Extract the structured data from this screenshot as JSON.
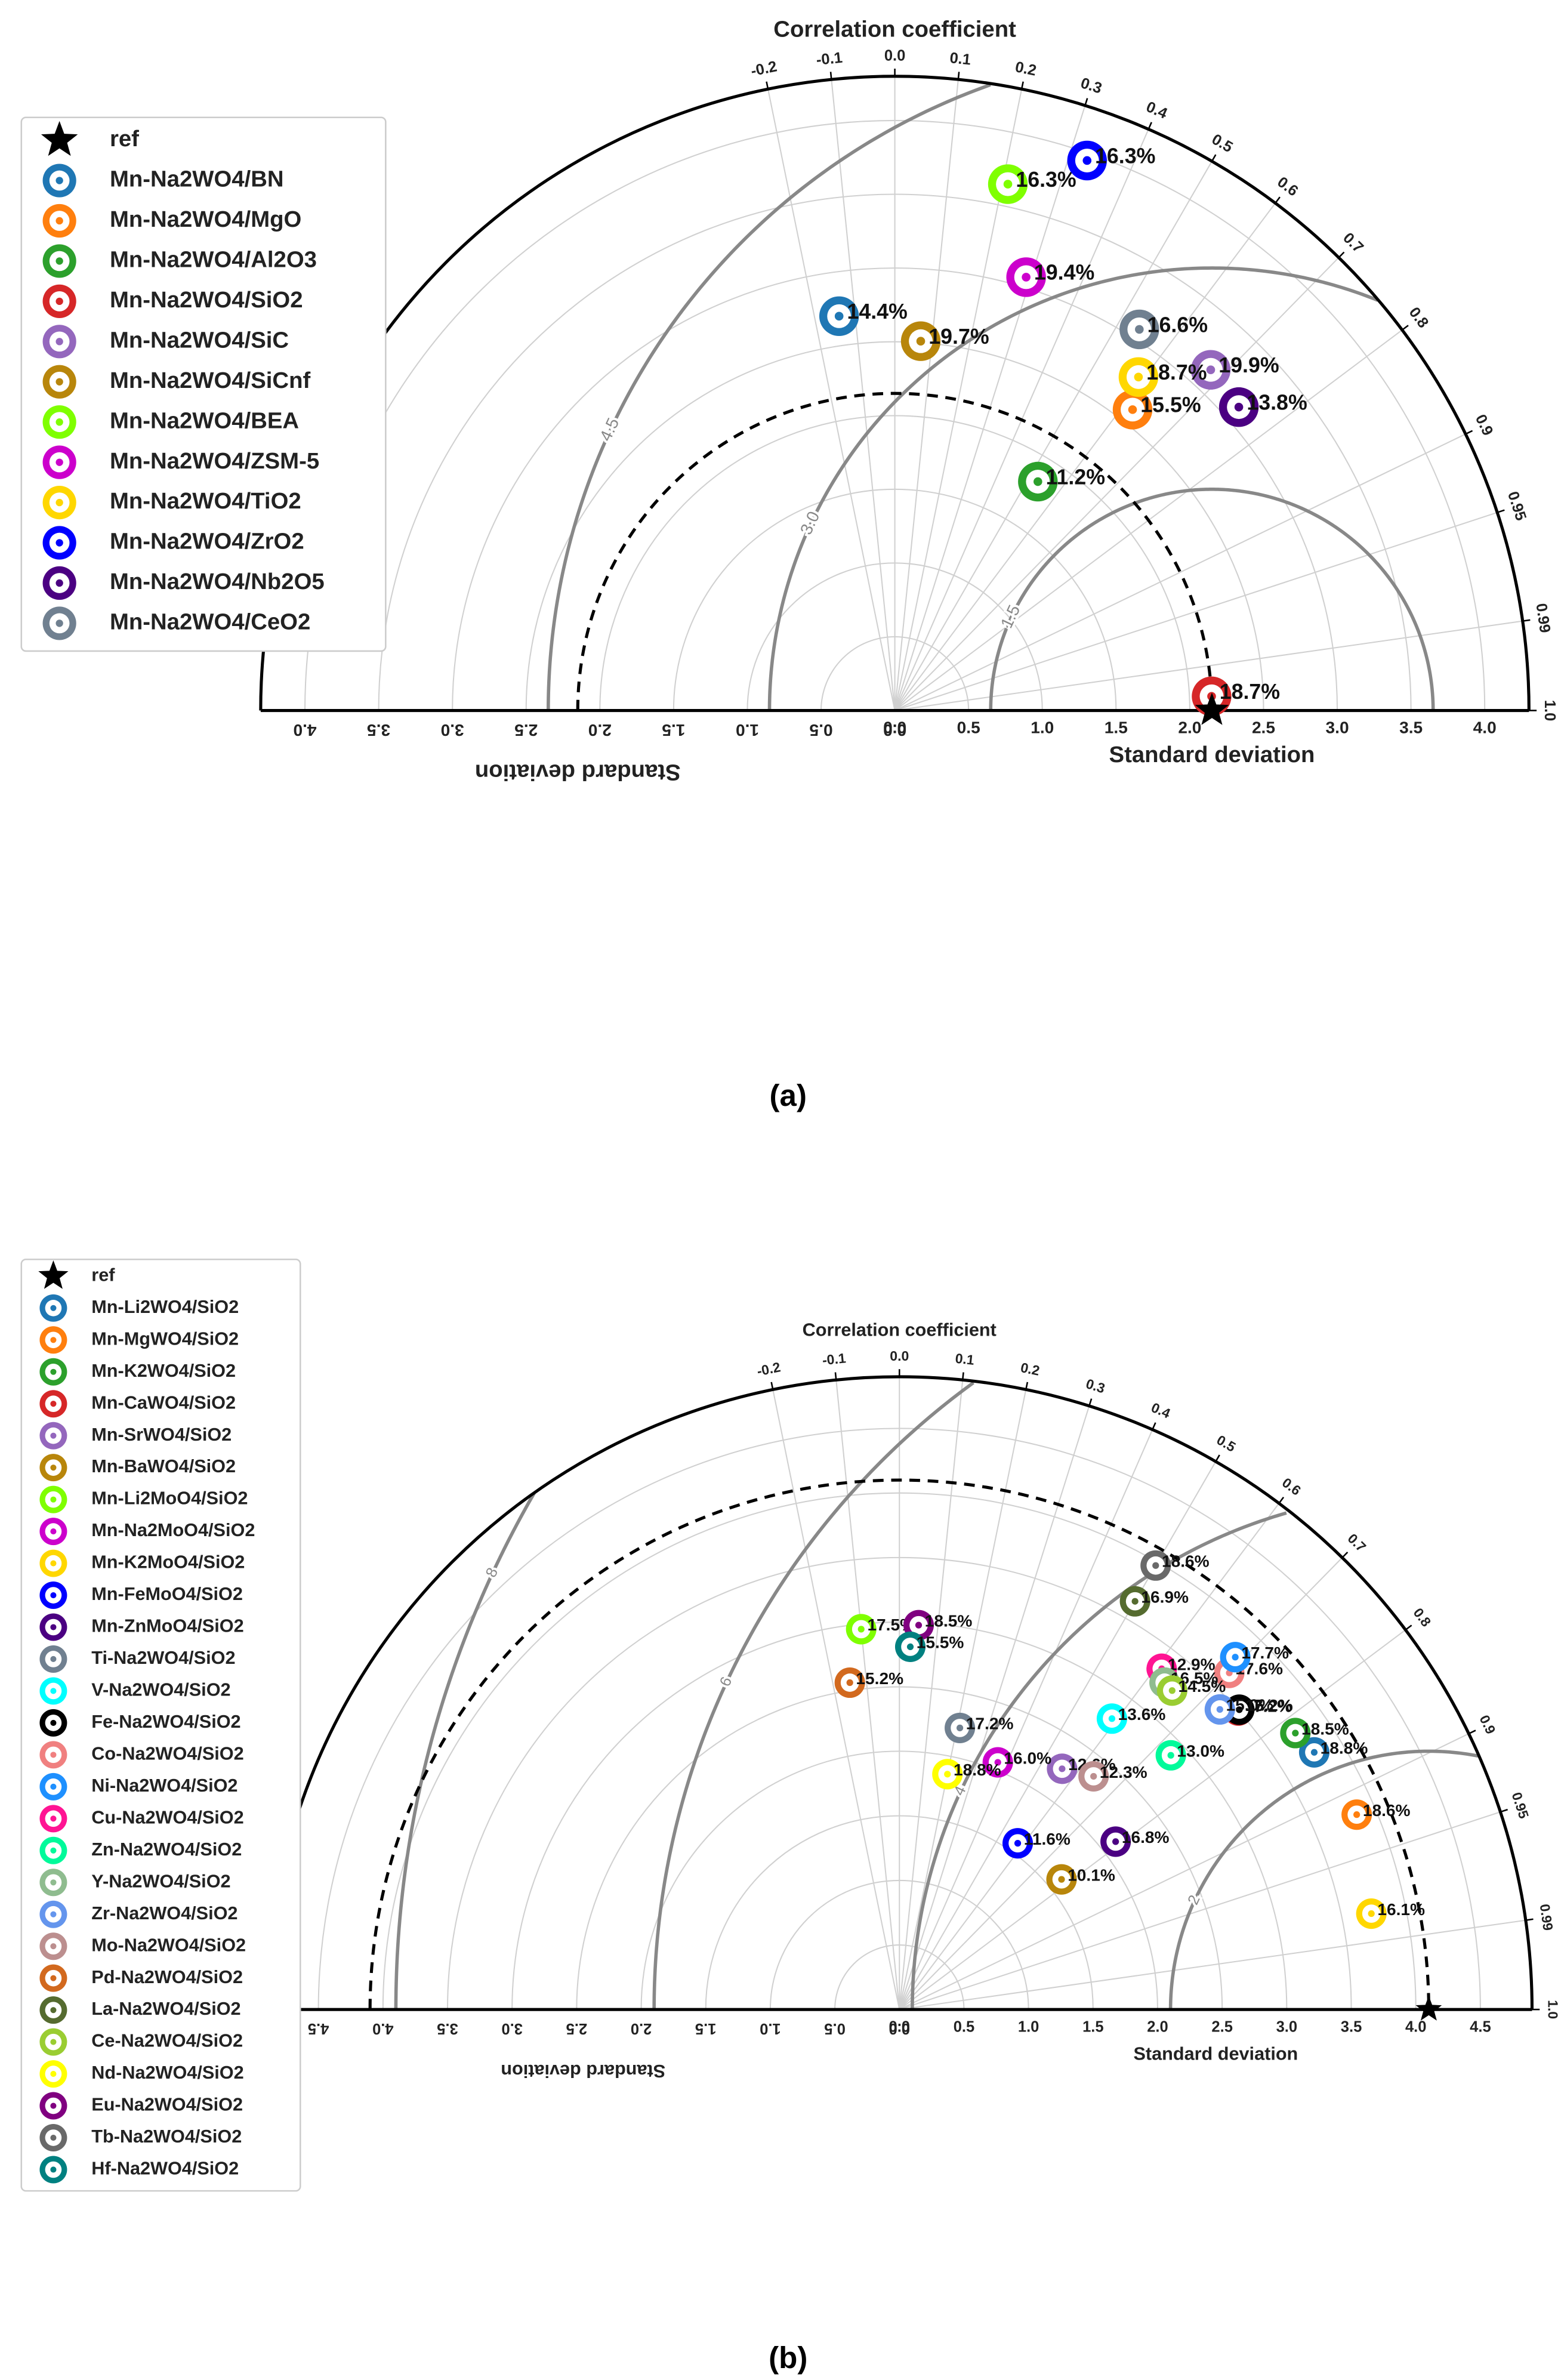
{
  "chart_data": [
    {
      "type": "taylor",
      "title": "Correlation coefficient",
      "xlabel": "Standard deviation",
      "caption": "(a)",
      "rlim": [
        0,
        4.3
      ],
      "stdticks": [
        {
          "value": 0,
          "label": "0.0"
        },
        0.5,
        {
          "value": 1,
          "label": "1.0"
        },
        1.5,
        {
          "value": 2,
          "label": "2.0"
        },
        2.5,
        {
          "value": 3,
          "label": "3.0"
        },
        3.5,
        {
          "value": 4,
          "label": "4.0"
        }
      ],
      "corrticks": [
        -0.2,
        -0.1,
        {
          "value": 0,
          "label": "0.0"
        },
        0.1,
        0.2,
        0.3,
        0.4,
        0.5,
        0.6,
        0.7,
        0.8,
        0.9,
        0.95,
        0.99,
        {
          "value": 1,
          "label": "1.0"
        }
      ],
      "rms_ticks": [
        1.5,
        {
          "value": 3,
          "label": "3.0"
        },
        4.5
      ],
      "grid": true,
      "ref": {
        "name": "ref",
        "std": 2.15,
        "corr": 1,
        "color": "#000000"
      },
      "series": [
        {
          "name": "Mn-Na2WO4/BN",
          "color": "#1f77b4",
          "std": 2.7,
          "corr": -0.14,
          "label": "14.4%"
        },
        {
          "name": "Mn-Na2WO4/MgO",
          "color": "#ff7f0e",
          "std": 2.6,
          "corr": 0.62,
          "label": "15.5%"
        },
        {
          "name": "Mn-Na2WO4/Al2O3",
          "color": "#2ca02c",
          "std": 1.83,
          "corr": 0.53,
          "label": "11.2%"
        },
        {
          "name": "Mn-Na2WO4/SiO2",
          "color": "#d62728",
          "std": 2.15,
          "corr": 0.999,
          "label": "18.7%"
        },
        {
          "name": "Mn-Na2WO4/SiC",
          "color": "#9467bd",
          "std": 3.15,
          "corr": 0.68,
          "label": "19.9%"
        },
        {
          "name": "Mn-Na2WO4/SiCnf",
          "color": "#b8860b",
          "std": 2.51,
          "corr": 0.07,
          "label": "19.7%"
        },
        {
          "name": "Mn-Na2WO4/BEA",
          "color": "#7fff00",
          "std": 3.65,
          "corr": 0.21,
          "label": "16.3%"
        },
        {
          "name": "Mn-Na2WO4/ZSM-5",
          "color": "#cc00cc",
          "std": 3.07,
          "corr": 0.29,
          "label": "19.4%"
        },
        {
          "name": "Mn-Na2WO4/TiO2",
          "color": "#ffd700",
          "std": 2.8,
          "corr": 0.59,
          "label": "18.7%"
        },
        {
          "name": "Mn-Na2WO4/ZrO2",
          "color": "#0000ff",
          "std": 3.95,
          "corr": 0.33,
          "label": "16.3%"
        },
        {
          "name": "Mn-Na2WO4/Nb2O5",
          "color": "#4b0082",
          "std": 3.11,
          "corr": 0.75,
          "label": "13.8%"
        },
        {
          "name": "Mn-Na2WO4/CeO2",
          "color": "#708090",
          "std": 3.07,
          "corr": 0.54,
          "label": "16.6%"
        }
      ]
    },
    {
      "type": "taylor",
      "title": "Correlation coefficient",
      "xlabel": "Standard deviation",
      "caption": "(b)",
      "rlim": [
        0,
        4.9
      ],
      "stdticks": [
        {
          "value": 0,
          "label": "0.0"
        },
        0.5,
        {
          "value": 1,
          "label": "1.0"
        },
        1.5,
        {
          "value": 2,
          "label": "2.0"
        },
        2.5,
        {
          "value": 3,
          "label": "3.0"
        },
        3.5,
        {
          "value": 4,
          "label": "4.0"
        },
        4.5
      ],
      "corrticks": [
        -0.2,
        -0.1,
        {
          "value": 0,
          "label": "0.0"
        },
        0.1,
        0.2,
        0.3,
        0.4,
        0.5,
        0.6,
        0.7,
        0.8,
        0.9,
        0.95,
        0.99,
        {
          "value": 1,
          "label": "1.0"
        }
      ],
      "rms_ticks": [
        2,
        4,
        6,
        8
      ],
      "grid": true,
      "ref": {
        "name": "ref",
        "std": 4.1,
        "corr": 1,
        "color": "#000000"
      },
      "series": [
        {
          "name": "Mn-Li2WO4/SiO2",
          "color": "#1f77b4",
          "std": 3.78,
          "corr": 0.85,
          "label": "18.8%"
        },
        {
          "name": "Mn-MgWO4/SiO2",
          "color": "#ff7f0e",
          "std": 3.85,
          "corr": 0.92,
          "label": "18.6%"
        },
        {
          "name": "Mn-K2WO4/SiO2",
          "color": "#2ca02c",
          "std": 3.74,
          "corr": 0.82,
          "label": "18.5%"
        },
        {
          "name": "Mn-CaWO4/SiO2",
          "color": "#d62728",
          "std": 3.5,
          "corr": 0.75,
          "label": "17.2%"
        },
        {
          "name": "Mn-SrWO4/SiO2",
          "color": "#9467bd",
          "std": 2.25,
          "corr": 0.56,
          "label": "12.6%"
        },
        {
          "name": "Mn-BaWO4/SiO2",
          "color": "#b8860b",
          "std": 1.61,
          "corr": 0.78,
          "label": "10.1%"
        },
        {
          "name": "Mn-Li2MoO4/SiO2",
          "color": "#7fff00",
          "std": 2.96,
          "corr": -0.1,
          "label": "17.5%"
        },
        {
          "name": "Mn-Na2MoO4/SiO2",
          "color": "#cc00cc",
          "std": 2.06,
          "corr": 0.37,
          "label": "16.0%"
        },
        {
          "name": "Mn-K2MoO4/SiO2",
          "color": "#ffd700",
          "std": 3.73,
          "corr": 0.98,
          "label": "16.1%"
        },
        {
          "name": "Mn-FeMoO4/SiO2",
          "color": "#0000ff",
          "std": 1.58,
          "corr": 0.58,
          "label": "11.6%"
        },
        {
          "name": "Mn-ZnMoO4/SiO2",
          "color": "#4b0082",
          "std": 2.12,
          "corr": 0.79,
          "label": "16.8%"
        },
        {
          "name": "Ti-Na2WO4/SiO2",
          "color": "#708090",
          "std": 2.23,
          "corr": 0.21,
          "label": "17.2%"
        },
        {
          "name": "V-Na2WO4/SiO2",
          "color": "#00ffff",
          "std": 2.79,
          "corr": 0.59,
          "label": "13.6%"
        },
        {
          "name": "Fe-Na2WO4/SiO2",
          "color": "#000000",
          "std": 3.51,
          "corr": 0.75,
          "label": "15.2%"
        },
        {
          "name": "Co-Na2WO4/SiO2",
          "color": "#f08080",
          "std": 3.65,
          "corr": 0.7,
          "label": "17.6%"
        },
        {
          "name": "Ni-Na2WO4/SiO2",
          "color": "#1e90ff",
          "std": 3.77,
          "corr": 0.69,
          "label": "17.7%"
        },
        {
          "name": "Cu-Na2WO4/SiO2",
          "color": "#ff1493",
          "std": 3.33,
          "corr": 0.61,
          "label": "12.9%"
        },
        {
          "name": "Zn-Na2WO4/SiO2",
          "color": "#00fa9a",
          "std": 2.88,
          "corr": 0.73,
          "label": "13.0%"
        },
        {
          "name": "Y-Na2WO4/SiO2",
          "color": "#8fbc8f",
          "std": 3.26,
          "corr": 0.63,
          "label": "16.5%"
        },
        {
          "name": "Zr-Na2WO4/SiO2",
          "color": "#6495ed",
          "std": 3.4,
          "corr": 0.73,
          "label": "15.0%"
        },
        {
          "name": "Mo-Na2WO4/SiO2",
          "color": "#bc8f8f",
          "std": 2.35,
          "corr": 0.64,
          "label": "12.3%"
        },
        {
          "name": "Pd-Na2WO4/SiO2",
          "color": "#d2691e",
          "std": 2.56,
          "corr": -0.15,
          "label": "15.2%"
        },
        {
          "name": "La-Na2WO4/SiO2",
          "color": "#556b2f",
          "std": 3.65,
          "corr": 0.5,
          "label": "16.9%"
        },
        {
          "name": "Ce-Na2WO4/SiO2",
          "color": "#9acd32",
          "std": 3.25,
          "corr": 0.65,
          "label": "14.5%"
        },
        {
          "name": "Nd-Na2WO4/SiO2",
          "color": "#ffff00",
          "std": 1.86,
          "corr": 0.2,
          "label": "18.8%"
        },
        {
          "name": "Eu-Na2WO4/SiO2",
          "color": "#800080",
          "std": 2.98,
          "corr": 0.05,
          "label": "18.5%"
        },
        {
          "name": "Tb-Na2WO4/SiO2",
          "color": "#696969",
          "std": 3.97,
          "corr": 0.5,
          "label": "18.6%"
        },
        {
          "name": "Hf-Na2WO4/SiO2",
          "color": "#008080",
          "std": 2.81,
          "corr": 0.03,
          "label": "15.5%"
        }
      ]
    }
  ]
}
